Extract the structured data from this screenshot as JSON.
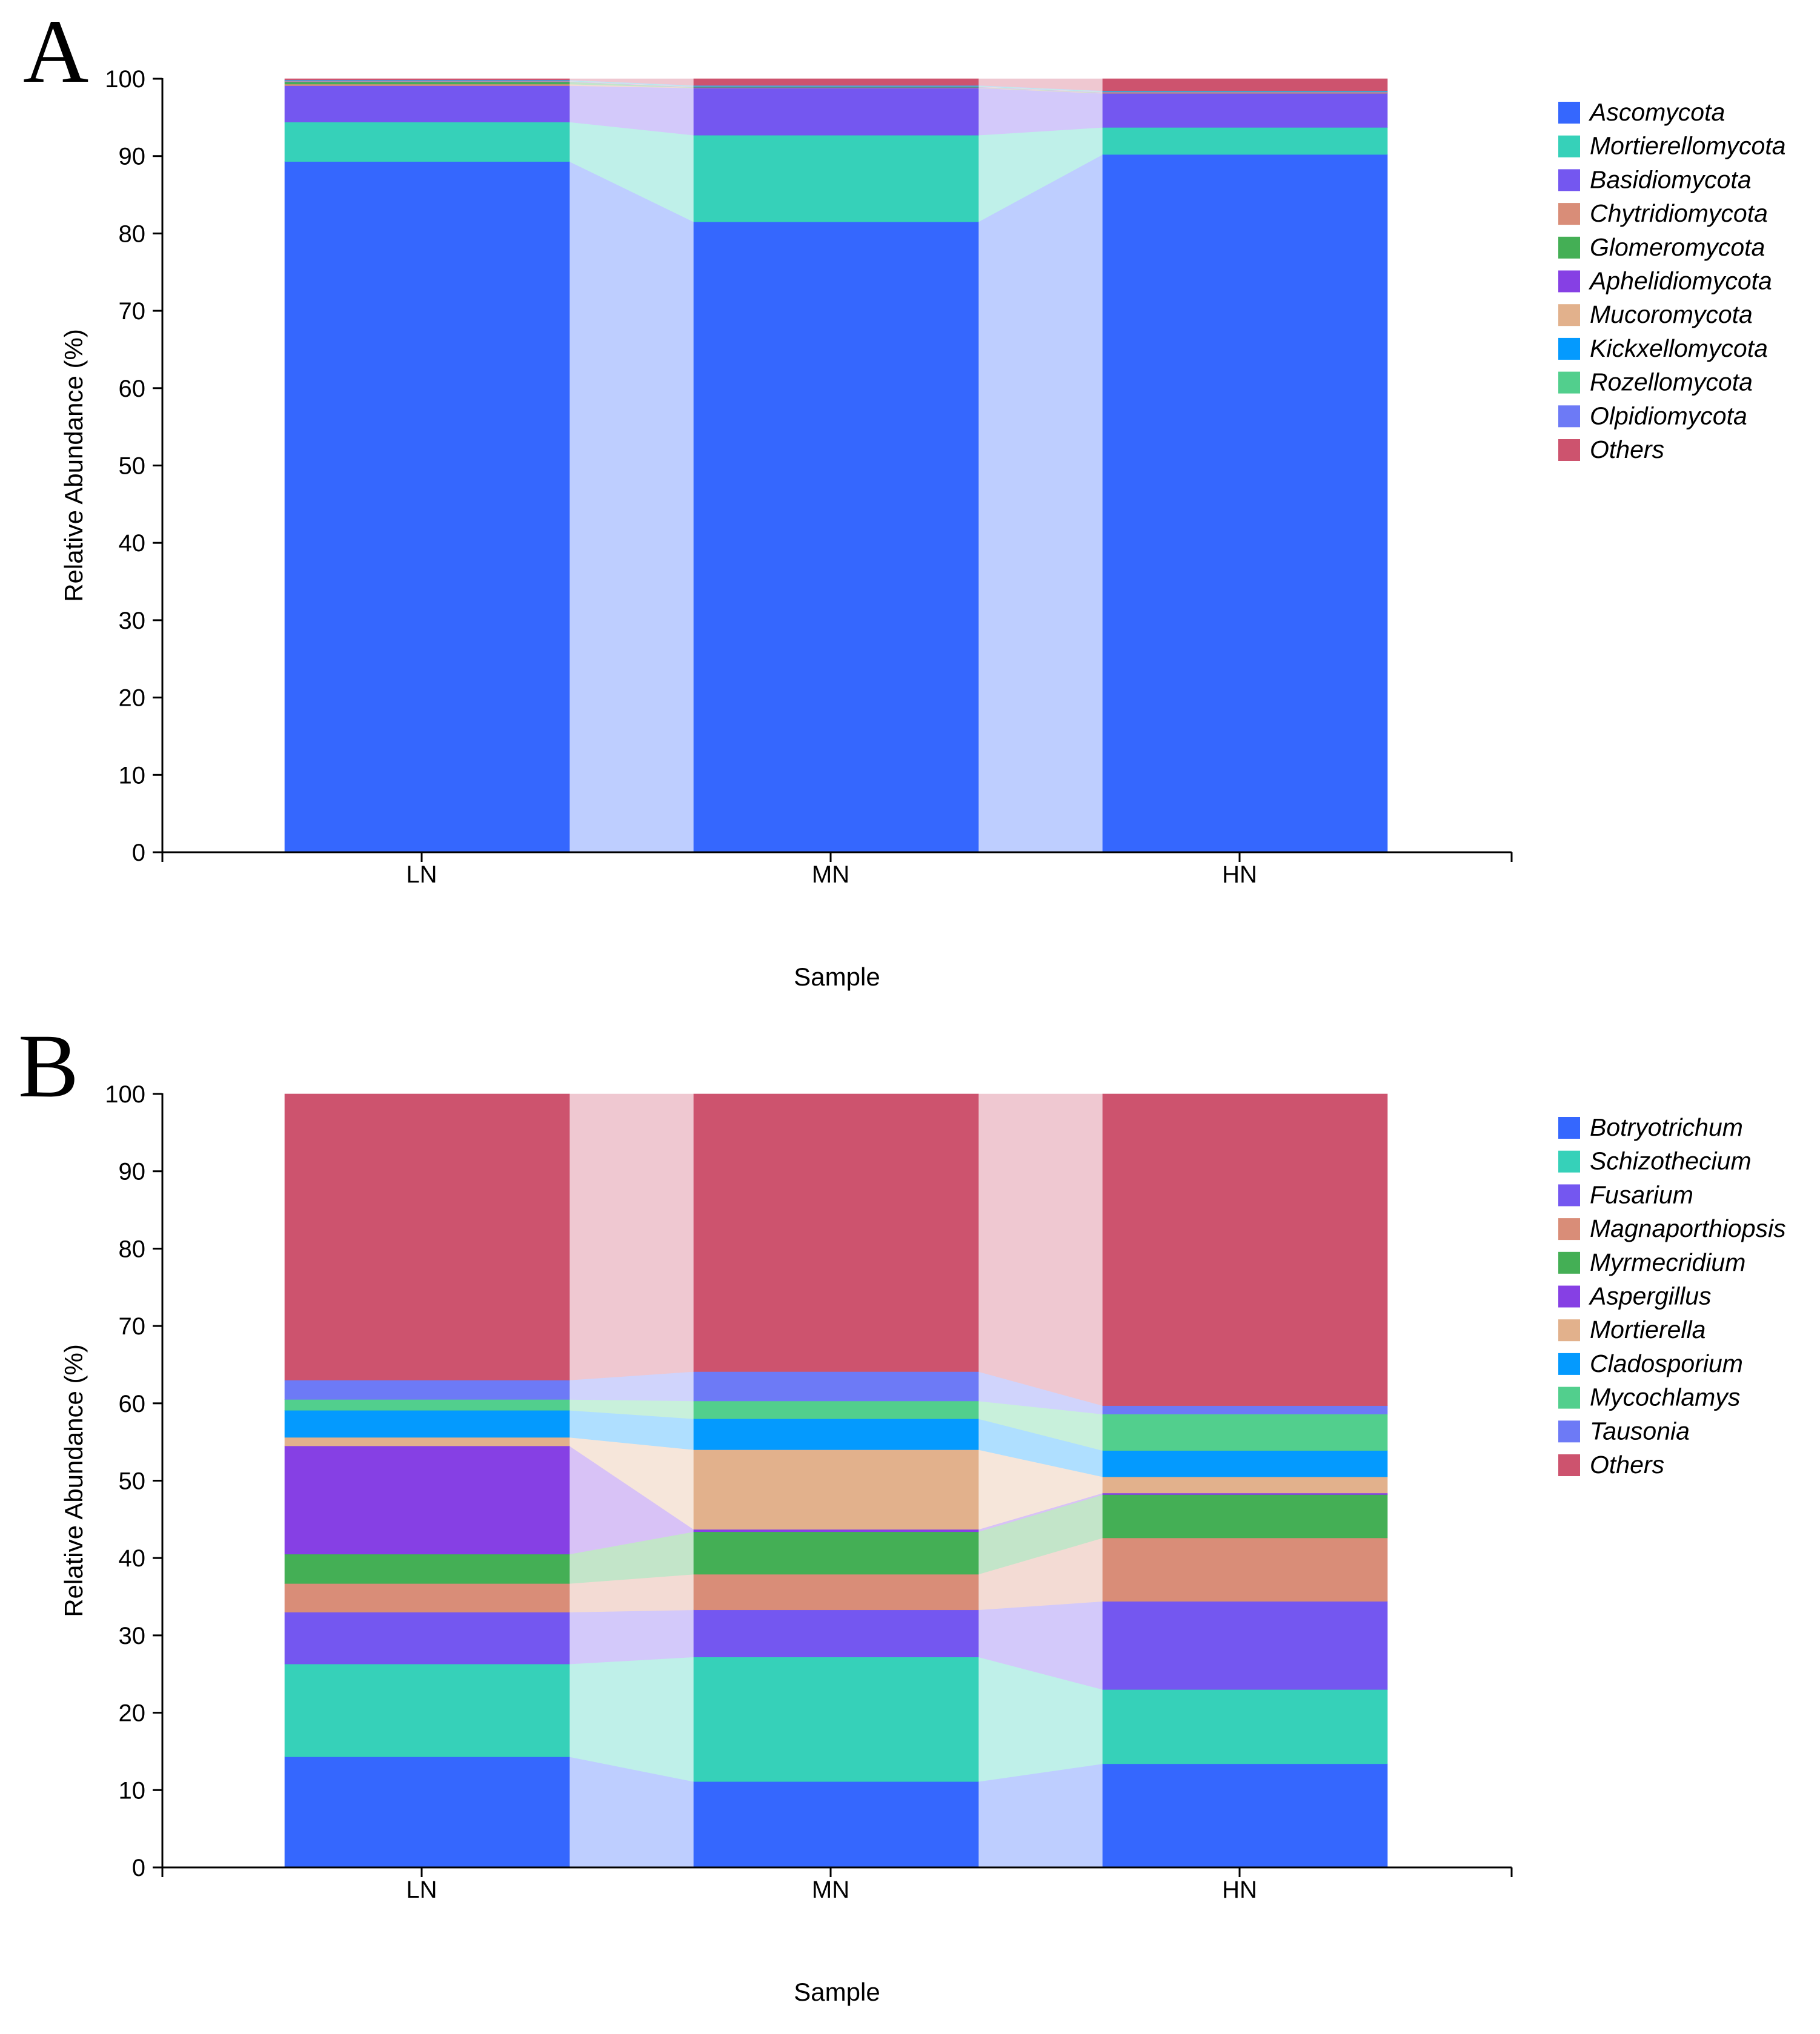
{
  "chart_data": [
    {
      "type": "bar",
      "panel_label": "A",
      "stacked": true,
      "percent": true,
      "xlabel": "Sample",
      "ylabel": "Relative Abundance (%)",
      "ylim": [
        0,
        100
      ],
      "yticks": [
        0,
        10,
        20,
        30,
        40,
        50,
        60,
        70,
        80,
        90,
        100
      ],
      "categories": [
        "LN",
        "MN",
        "HN"
      ],
      "legend_position": "right",
      "series": [
        {
          "name": "Ascomycota",
          "color": "#3567FE",
          "values": [
            89.3,
            81.5,
            90.3
          ]
        },
        {
          "name": "Mortierellomycota",
          "color": "#36D1B9",
          "values": [
            5.1,
            11.2,
            3.5
          ]
        },
        {
          "name": "Basidiomycota",
          "color": "#7457F0",
          "values": [
            4.7,
            6.1,
            4.4
          ]
        },
        {
          "name": "Chytridiomycota",
          "color": "#D98D78",
          "values": [
            0.2,
            0.05,
            0.05
          ]
        },
        {
          "name": "Glomeromycota",
          "color": "#44AF55",
          "values": [
            0.3,
            0.05,
            0.05
          ]
        },
        {
          "name": "Aphelidiomycota",
          "color": "#8640E4",
          "values": [
            0.05,
            0.05,
            0.05
          ]
        },
        {
          "name": "Mucoromycota",
          "color": "#E2B18C",
          "values": [
            0.05,
            0.05,
            0.05
          ]
        },
        {
          "name": "Kickxellomycota",
          "color": "#049AFE",
          "values": [
            0.05,
            0.05,
            0.05
          ]
        },
        {
          "name": "Rozellomycota",
          "color": "#52CF8D",
          "values": [
            0.05,
            0.05,
            0.05
          ]
        },
        {
          "name": "Olpidiomycota",
          "color": "#6D7AF6",
          "values": [
            0.05,
            0.05,
            0.05
          ]
        },
        {
          "name": "Others",
          "color": "#CD536E",
          "values": [
            0.15,
            0.85,
            1.55
          ]
        }
      ]
    },
    {
      "type": "bar",
      "panel_label": "B",
      "stacked": true,
      "percent": true,
      "xlabel": "Sample",
      "ylabel": "Relative Abundance (%)",
      "ylim": [
        0,
        100
      ],
      "yticks": [
        0,
        10,
        20,
        30,
        40,
        50,
        60,
        70,
        80,
        90,
        100
      ],
      "categories": [
        "LN",
        "MN",
        "HN"
      ],
      "legend_position": "right",
      "series": [
        {
          "name": "Botryotrichum",
          "color": "#3567FE",
          "values": [
            14.3,
            11.1,
            13.4
          ]
        },
        {
          "name": "Schizothecium",
          "color": "#36D1B9",
          "values": [
            12.0,
            16.1,
            9.6
          ]
        },
        {
          "name": "Fusarium",
          "color": "#7457F0",
          "values": [
            6.7,
            6.1,
            11.4
          ]
        },
        {
          "name": "Magnaporthiopsis",
          "color": "#D98D78",
          "values": [
            3.7,
            4.6,
            8.2
          ]
        },
        {
          "name": "Myrmecridium",
          "color": "#44AF55",
          "values": [
            3.8,
            5.5,
            5.6
          ]
        },
        {
          "name": "Aspergillus",
          "color": "#8640E4",
          "values": [
            14.0,
            0.3,
            0.2
          ]
        },
        {
          "name": "Mortierella",
          "color": "#E2B18C",
          "values": [
            1.1,
            10.3,
            2.1
          ]
        },
        {
          "name": "Cladosporium",
          "color": "#049AFE",
          "values": [
            3.5,
            4.0,
            3.4
          ]
        },
        {
          "name": "Mycochlamys",
          "color": "#52CF8D",
          "values": [
            1.4,
            2.3,
            4.7
          ]
        },
        {
          "name": "Tausonia",
          "color": "#6D7AF6",
          "values": [
            2.5,
            3.8,
            1.1
          ]
        },
        {
          "name": "Others",
          "color": "#CD536E",
          "values": [
            37.0,
            35.9,
            40.3
          ]
        }
      ]
    }
  ]
}
